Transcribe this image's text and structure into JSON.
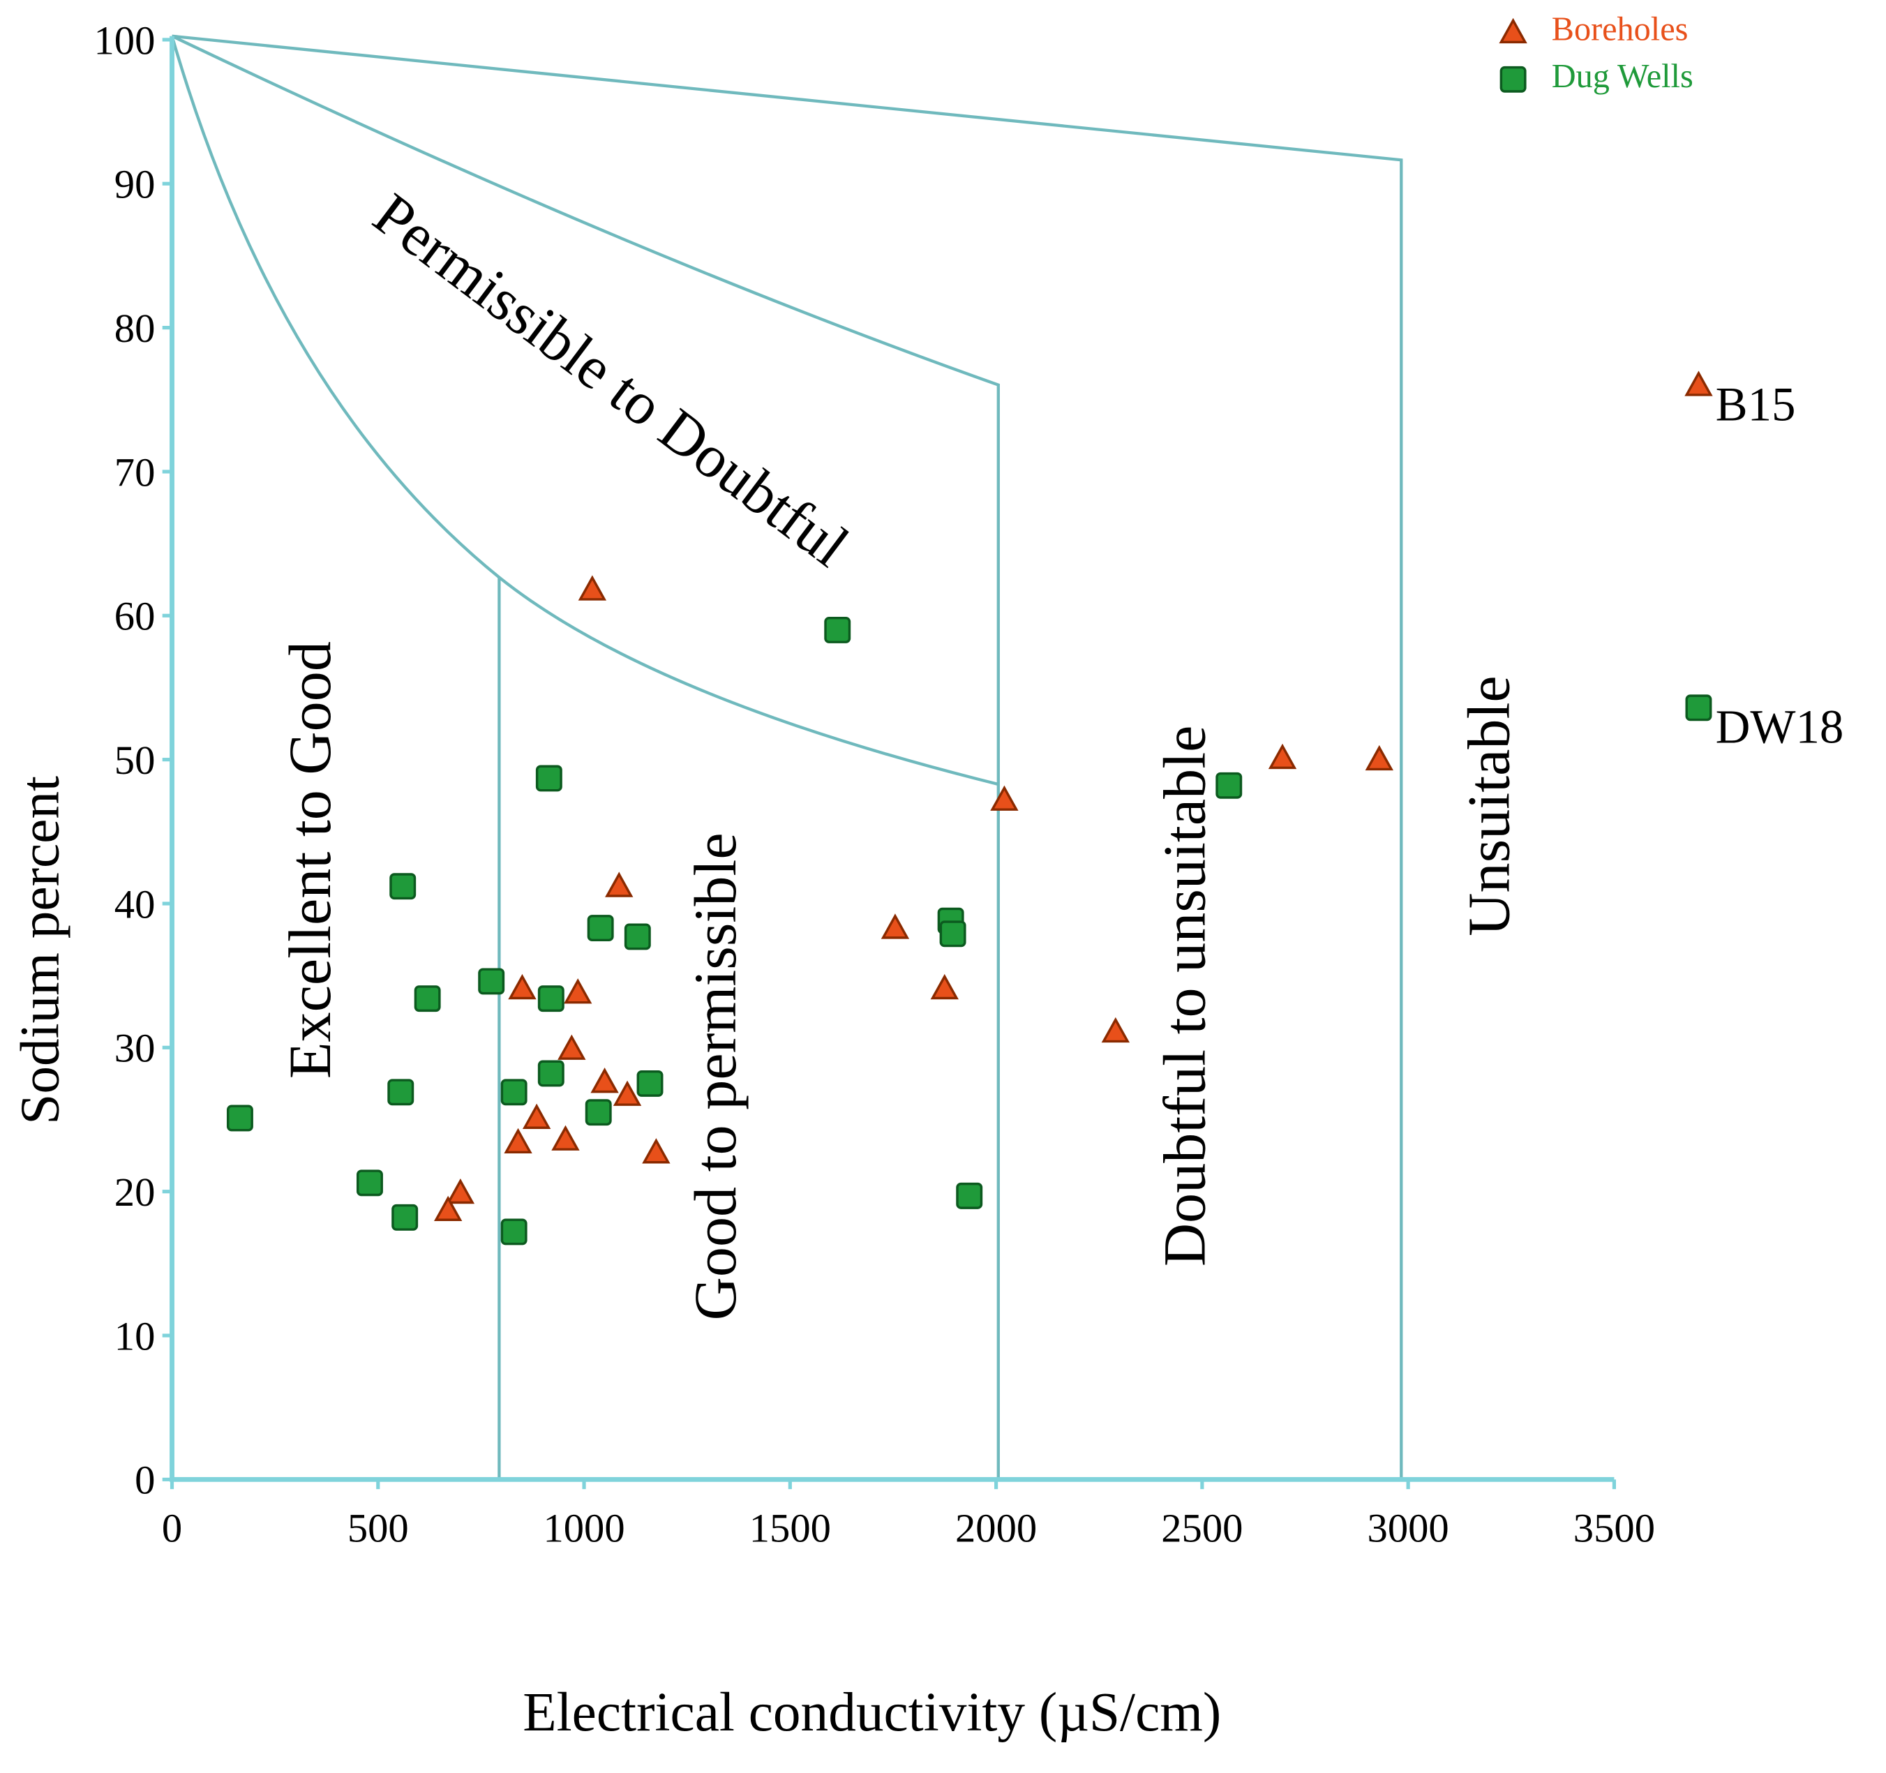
{
  "chart_data": {
    "type": "scatter",
    "xlabel": "Electrical conductivity (µS/cm)",
    "ylabel": "Sodium percent",
    "xlim": [
      0,
      3500
    ],
    "ylim": [
      0,
      100
    ],
    "xticks": [
      0,
      500,
      1000,
      1500,
      2000,
      2500,
      3000,
      3500
    ],
    "yticks": [
      0,
      10,
      20,
      30,
      40,
      50,
      60,
      70,
      80,
      90,
      100
    ],
    "annotations": [
      "Permissible to Doubtful",
      "Excellent to Good",
      "Good to permissible",
      "Doubtful to unsuitable",
      "Unsuitable"
    ],
    "series": [
      {
        "name": "Boreholes",
        "marker": "triangle",
        "color": "#e8501a",
        "x": [
          1020,
          1085,
          1755,
          1875,
          850,
          985,
          970,
          1050,
          1105,
          885,
          955,
          840,
          1175,
          700,
          670,
          2020,
          2290,
          2695,
          2930,
          3705
        ],
        "y": [
          61.8,
          41.2,
          38.3,
          34.1,
          34.1,
          33.8,
          29.9,
          27.6,
          26.7,
          25.1,
          23.6,
          23.4,
          22.7,
          19.9,
          18.7,
          47.2,
          31.1,
          50.1,
          50.0,
          76.0
        ],
        "labels": [
          null,
          null,
          null,
          null,
          null,
          null,
          null,
          null,
          null,
          null,
          null,
          null,
          null,
          null,
          null,
          null,
          null,
          null,
          null,
          "B15"
        ]
      },
      {
        "name": "Dug Wells",
        "marker": "square",
        "color": "#1f9a3a",
        "x": [
          165,
          480,
          565,
          555,
          560,
          620,
          775,
          830,
          830,
          920,
          920,
          915,
          1040,
          1035,
          1130,
          1160,
          1615,
          1890,
          1895,
          1935,
          2565,
          3705
        ],
        "y": [
          25.1,
          20.6,
          18.2,
          26.9,
          41.2,
          33.4,
          34.6,
          26.9,
          17.2,
          28.2,
          33.4,
          48.7,
          38.3,
          25.5,
          37.7,
          27.5,
          59.0,
          38.8,
          37.9,
          19.7,
          48.2,
          53.6
        ],
        "labels": [
          null,
          null,
          null,
          null,
          null,
          null,
          null,
          null,
          null,
          null,
          null,
          null,
          null,
          null,
          null,
          null,
          null,
          null,
          null,
          null,
          null,
          "DW18"
        ]
      }
    ]
  }
}
